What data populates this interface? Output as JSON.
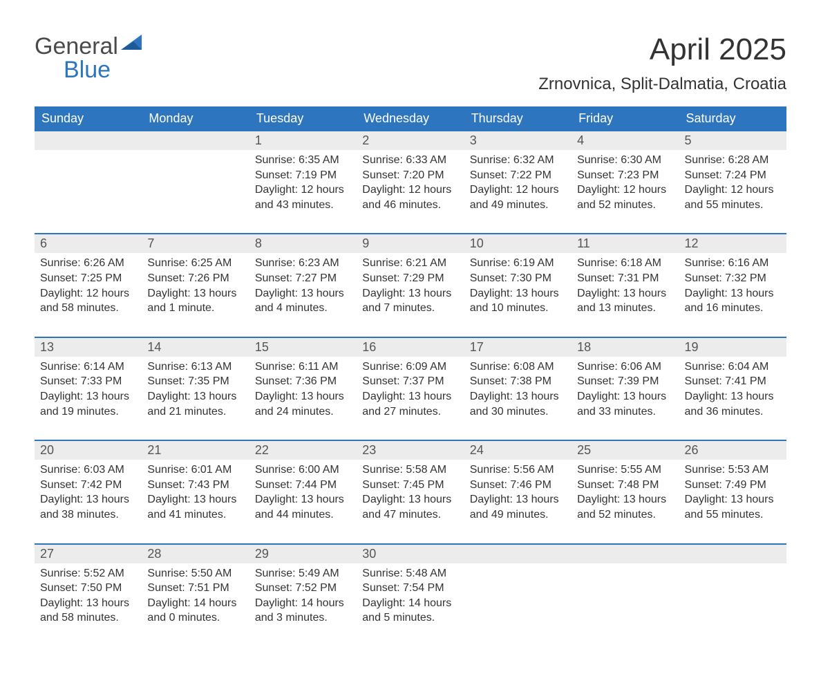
{
  "brand": {
    "general": "General",
    "blue": "Blue"
  },
  "title": "April 2025",
  "location": "Zrnovnica, Split-Dalmatia, Croatia",
  "colors": {
    "header_bg": "#2d76bf",
    "header_text": "#ffffff",
    "daynum_bg": "#ececec",
    "rule": "#2d76bf",
    "body_text": "#333333",
    "logo_gray": "#4a4a4a",
    "logo_blue": "#2d76bf"
  },
  "weekdays": [
    "Sunday",
    "Monday",
    "Tuesday",
    "Wednesday",
    "Thursday",
    "Friday",
    "Saturday"
  ],
  "weeks": [
    [
      null,
      null,
      {
        "n": "1",
        "sr": "Sunrise: 6:35 AM",
        "ss": "Sunset: 7:19 PM",
        "d1": "Daylight: 12 hours",
        "d2": "and 43 minutes."
      },
      {
        "n": "2",
        "sr": "Sunrise: 6:33 AM",
        "ss": "Sunset: 7:20 PM",
        "d1": "Daylight: 12 hours",
        "d2": "and 46 minutes."
      },
      {
        "n": "3",
        "sr": "Sunrise: 6:32 AM",
        "ss": "Sunset: 7:22 PM",
        "d1": "Daylight: 12 hours",
        "d2": "and 49 minutes."
      },
      {
        "n": "4",
        "sr": "Sunrise: 6:30 AM",
        "ss": "Sunset: 7:23 PM",
        "d1": "Daylight: 12 hours",
        "d2": "and 52 minutes."
      },
      {
        "n": "5",
        "sr": "Sunrise: 6:28 AM",
        "ss": "Sunset: 7:24 PM",
        "d1": "Daylight: 12 hours",
        "d2": "and 55 minutes."
      }
    ],
    [
      {
        "n": "6",
        "sr": "Sunrise: 6:26 AM",
        "ss": "Sunset: 7:25 PM",
        "d1": "Daylight: 12 hours",
        "d2": "and 58 minutes."
      },
      {
        "n": "7",
        "sr": "Sunrise: 6:25 AM",
        "ss": "Sunset: 7:26 PM",
        "d1": "Daylight: 13 hours",
        "d2": "and 1 minute."
      },
      {
        "n": "8",
        "sr": "Sunrise: 6:23 AM",
        "ss": "Sunset: 7:27 PM",
        "d1": "Daylight: 13 hours",
        "d2": "and 4 minutes."
      },
      {
        "n": "9",
        "sr": "Sunrise: 6:21 AM",
        "ss": "Sunset: 7:29 PM",
        "d1": "Daylight: 13 hours",
        "d2": "and 7 minutes."
      },
      {
        "n": "10",
        "sr": "Sunrise: 6:19 AM",
        "ss": "Sunset: 7:30 PM",
        "d1": "Daylight: 13 hours",
        "d2": "and 10 minutes."
      },
      {
        "n": "11",
        "sr": "Sunrise: 6:18 AM",
        "ss": "Sunset: 7:31 PM",
        "d1": "Daylight: 13 hours",
        "d2": "and 13 minutes."
      },
      {
        "n": "12",
        "sr": "Sunrise: 6:16 AM",
        "ss": "Sunset: 7:32 PM",
        "d1": "Daylight: 13 hours",
        "d2": "and 16 minutes."
      }
    ],
    [
      {
        "n": "13",
        "sr": "Sunrise: 6:14 AM",
        "ss": "Sunset: 7:33 PM",
        "d1": "Daylight: 13 hours",
        "d2": "and 19 minutes."
      },
      {
        "n": "14",
        "sr": "Sunrise: 6:13 AM",
        "ss": "Sunset: 7:35 PM",
        "d1": "Daylight: 13 hours",
        "d2": "and 21 minutes."
      },
      {
        "n": "15",
        "sr": "Sunrise: 6:11 AM",
        "ss": "Sunset: 7:36 PM",
        "d1": "Daylight: 13 hours",
        "d2": "and 24 minutes."
      },
      {
        "n": "16",
        "sr": "Sunrise: 6:09 AM",
        "ss": "Sunset: 7:37 PM",
        "d1": "Daylight: 13 hours",
        "d2": "and 27 minutes."
      },
      {
        "n": "17",
        "sr": "Sunrise: 6:08 AM",
        "ss": "Sunset: 7:38 PM",
        "d1": "Daylight: 13 hours",
        "d2": "and 30 minutes."
      },
      {
        "n": "18",
        "sr": "Sunrise: 6:06 AM",
        "ss": "Sunset: 7:39 PM",
        "d1": "Daylight: 13 hours",
        "d2": "and 33 minutes."
      },
      {
        "n": "19",
        "sr": "Sunrise: 6:04 AM",
        "ss": "Sunset: 7:41 PM",
        "d1": "Daylight: 13 hours",
        "d2": "and 36 minutes."
      }
    ],
    [
      {
        "n": "20",
        "sr": "Sunrise: 6:03 AM",
        "ss": "Sunset: 7:42 PM",
        "d1": "Daylight: 13 hours",
        "d2": "and 38 minutes."
      },
      {
        "n": "21",
        "sr": "Sunrise: 6:01 AM",
        "ss": "Sunset: 7:43 PM",
        "d1": "Daylight: 13 hours",
        "d2": "and 41 minutes."
      },
      {
        "n": "22",
        "sr": "Sunrise: 6:00 AM",
        "ss": "Sunset: 7:44 PM",
        "d1": "Daylight: 13 hours",
        "d2": "and 44 minutes."
      },
      {
        "n": "23",
        "sr": "Sunrise: 5:58 AM",
        "ss": "Sunset: 7:45 PM",
        "d1": "Daylight: 13 hours",
        "d2": "and 47 minutes."
      },
      {
        "n": "24",
        "sr": "Sunrise: 5:56 AM",
        "ss": "Sunset: 7:46 PM",
        "d1": "Daylight: 13 hours",
        "d2": "and 49 minutes."
      },
      {
        "n": "25",
        "sr": "Sunrise: 5:55 AM",
        "ss": "Sunset: 7:48 PM",
        "d1": "Daylight: 13 hours",
        "d2": "and 52 minutes."
      },
      {
        "n": "26",
        "sr": "Sunrise: 5:53 AM",
        "ss": "Sunset: 7:49 PM",
        "d1": "Daylight: 13 hours",
        "d2": "and 55 minutes."
      }
    ],
    [
      {
        "n": "27",
        "sr": "Sunrise: 5:52 AM",
        "ss": "Sunset: 7:50 PM",
        "d1": "Daylight: 13 hours",
        "d2": "and 58 minutes."
      },
      {
        "n": "28",
        "sr": "Sunrise: 5:50 AM",
        "ss": "Sunset: 7:51 PM",
        "d1": "Daylight: 14 hours",
        "d2": "and 0 minutes."
      },
      {
        "n": "29",
        "sr": "Sunrise: 5:49 AM",
        "ss": "Sunset: 7:52 PM",
        "d1": "Daylight: 14 hours",
        "d2": "and 3 minutes."
      },
      {
        "n": "30",
        "sr": "Sunrise: 5:48 AM",
        "ss": "Sunset: 7:54 PM",
        "d1": "Daylight: 14 hours",
        "d2": "and 5 minutes."
      },
      null,
      null,
      null
    ]
  ]
}
